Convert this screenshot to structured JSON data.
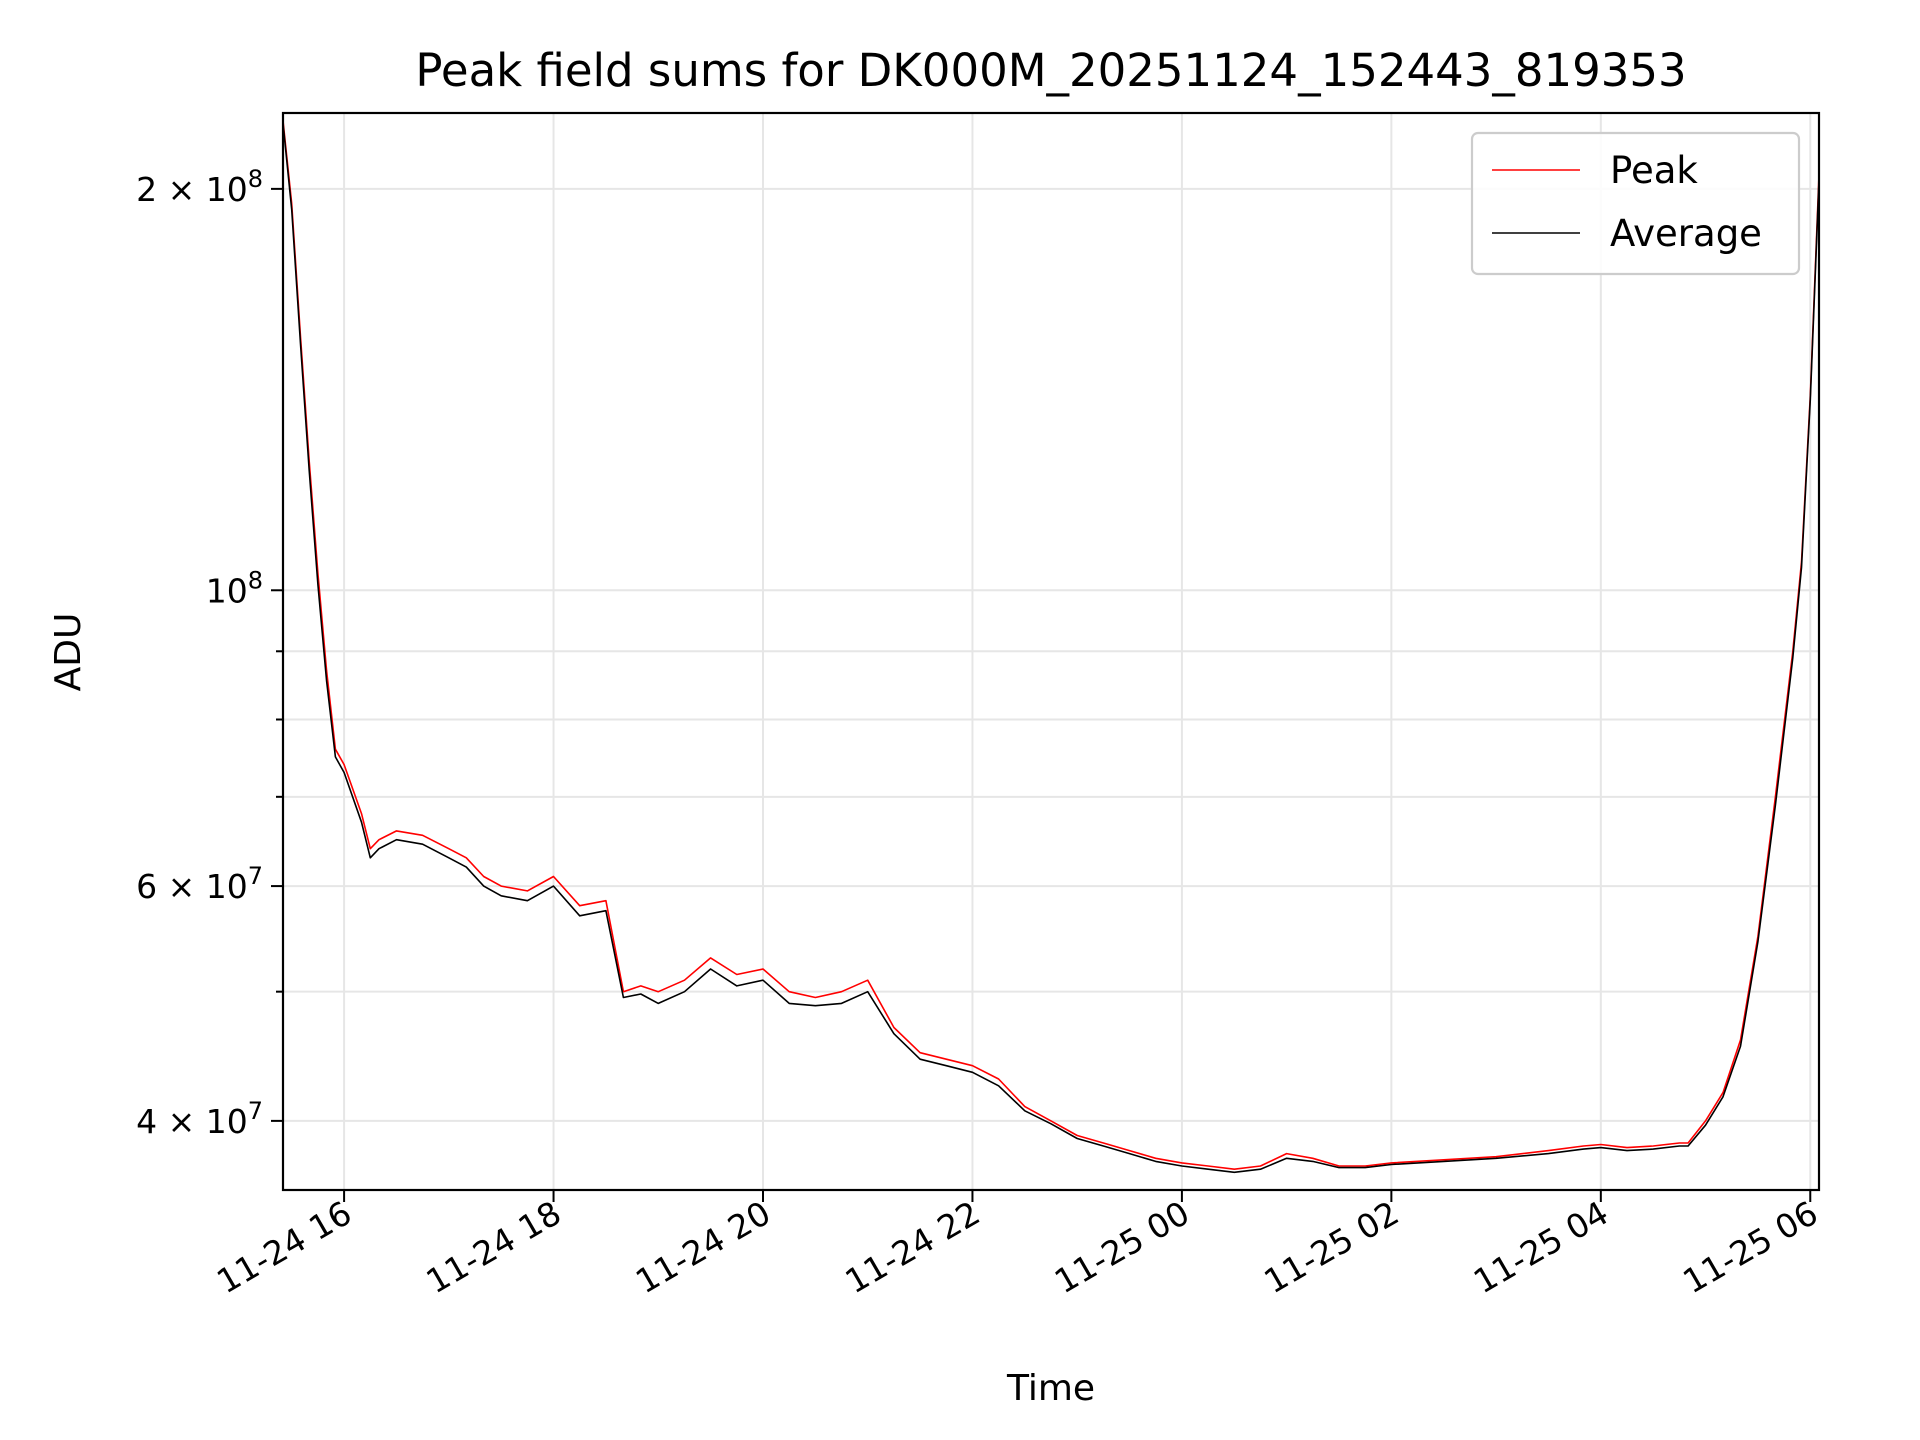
{
  "chart_data": {
    "type": "line",
    "title": "Peak field sums for DK000M_20251124_152443_819353",
    "xlabel": "Time",
    "ylabel": "ADU",
    "yscale": "log",
    "grid": true,
    "legend_position": "top-right",
    "xlim": [
      "2025-11-24 15:25",
      "2025-11-25 06:05"
    ],
    "ylim": [
      35500000,
      228000000
    ],
    "x_ticks": [
      {
        "value": "2025-11-24 16:00",
        "label": "11-24 16"
      },
      {
        "value": "2025-11-24 18:00",
        "label": "11-24 18"
      },
      {
        "value": "2025-11-24 20:00",
        "label": "11-24 20"
      },
      {
        "value": "2025-11-24 22:00",
        "label": "11-24 22"
      },
      {
        "value": "2025-11-25 00:00",
        "label": "11-25 00"
      },
      {
        "value": "2025-11-25 02:00",
        "label": "11-25 02"
      },
      {
        "value": "2025-11-25 04:00",
        "label": "11-25 04"
      },
      {
        "value": "2025-11-25 06:00",
        "label": "11-25 06"
      }
    ],
    "y_major_ticks": [
      {
        "value": 40000000,
        "mantissa": "4",
        "exponent": "7"
      },
      {
        "value": 60000000,
        "mantissa": "6",
        "exponent": "7"
      },
      {
        "value": 100000000,
        "mantissa": "",
        "exponent": "8"
      },
      {
        "value": 200000000,
        "mantissa": "2",
        "exponent": "8"
      }
    ],
    "y_minor_ticks": [
      50000000,
      70000000,
      80000000,
      90000000
    ],
    "series": [
      {
        "name": "Peak",
        "color": "#ff0000",
        "x": [
          "2025-11-24 15:25",
          "2025-11-24 15:30",
          "2025-11-24 15:35",
          "2025-11-24 15:40",
          "2025-11-24 15:45",
          "2025-11-24 15:50",
          "2025-11-24 15:55",
          "2025-11-24 16:00",
          "2025-11-24 16:10",
          "2025-11-24 16:15",
          "2025-11-24 16:20",
          "2025-11-24 16:30",
          "2025-11-24 16:45",
          "2025-11-24 17:00",
          "2025-11-24 17:10",
          "2025-11-24 17:20",
          "2025-11-24 17:30",
          "2025-11-24 17:45",
          "2025-11-24 18:00",
          "2025-11-24 18:15",
          "2025-11-24 18:30",
          "2025-11-24 18:40",
          "2025-11-24 18:50",
          "2025-11-24 19:00",
          "2025-11-24 19:15",
          "2025-11-24 19:30",
          "2025-11-24 19:45",
          "2025-11-24 20:00",
          "2025-11-24 20:15",
          "2025-11-24 20:30",
          "2025-11-24 20:45",
          "2025-11-24 21:00",
          "2025-11-24 21:15",
          "2025-11-24 21:30",
          "2025-11-24 21:45",
          "2025-11-24 22:00",
          "2025-11-24 22:15",
          "2025-11-24 22:30",
          "2025-11-24 22:45",
          "2025-11-24 23:00",
          "2025-11-24 23:15",
          "2025-11-24 23:30",
          "2025-11-24 23:45",
          "2025-11-25 00:00",
          "2025-11-25 00:15",
          "2025-11-25 00:30",
          "2025-11-25 00:45",
          "2025-11-25 01:00",
          "2025-11-25 01:15",
          "2025-11-25 01:30",
          "2025-11-25 01:45",
          "2025-11-25 02:00",
          "2025-11-25 02:30",
          "2025-11-25 03:00",
          "2025-11-25 03:30",
          "2025-11-25 03:50",
          "2025-11-25 04:00",
          "2025-11-25 04:15",
          "2025-11-25 04:30",
          "2025-11-25 04:45",
          "2025-11-25 04:50",
          "2025-11-25 05:00",
          "2025-11-25 05:10",
          "2025-11-25 05:20",
          "2025-11-25 05:30",
          "2025-11-25 05:40",
          "2025-11-25 05:50",
          "2025-11-25 05:55",
          "2025-11-25 06:00",
          "2025-11-25 06:05"
        ],
        "values": [
          225000000,
          195000000,
          155000000,
          125000000,
          103000000,
          87000000,
          76000000,
          74000000,
          68000000,
          64000000,
          65000000,
          66000000,
          65500000,
          64000000,
          63000000,
          61000000,
          60000000,
          59500000,
          61000000,
          58000000,
          58500000,
          50000000,
          50500000,
          50000000,
          51000000,
          53000000,
          51500000,
          52000000,
          50000000,
          49500000,
          50000000,
          51000000,
          47000000,
          45000000,
          44500000,
          44000000,
          43000000,
          41000000,
          40000000,
          39000000,
          38500000,
          38000000,
          37500000,
          37200000,
          37000000,
          36800000,
          37000000,
          37800000,
          37500000,
          37000000,
          37000000,
          37200000,
          37400000,
          37600000,
          38000000,
          38300000,
          38400000,
          38200000,
          38300000,
          38500000,
          38500000,
          40000000,
          42000000,
          46000000,
          55000000,
          70000000,
          90000000,
          105000000,
          140000000,
          205000000
        ]
      },
      {
        "name": "Average",
        "color": "#000000",
        "x": [
          "2025-11-24 15:25",
          "2025-11-24 15:30",
          "2025-11-24 15:35",
          "2025-11-24 15:40",
          "2025-11-24 15:45",
          "2025-11-24 15:50",
          "2025-11-24 15:55",
          "2025-11-24 16:00",
          "2025-11-24 16:10",
          "2025-11-24 16:15",
          "2025-11-24 16:20",
          "2025-11-24 16:30",
          "2025-11-24 16:45",
          "2025-11-24 17:00",
          "2025-11-24 17:10",
          "2025-11-24 17:20",
          "2025-11-24 17:30",
          "2025-11-24 17:45",
          "2025-11-24 18:00",
          "2025-11-24 18:15",
          "2025-11-24 18:30",
          "2025-11-24 18:40",
          "2025-11-24 18:50",
          "2025-11-24 19:00",
          "2025-11-24 19:15",
          "2025-11-24 19:30",
          "2025-11-24 19:45",
          "2025-11-24 20:00",
          "2025-11-24 20:15",
          "2025-11-24 20:30",
          "2025-11-24 20:45",
          "2025-11-24 21:00",
          "2025-11-24 21:15",
          "2025-11-24 21:30",
          "2025-11-24 21:45",
          "2025-11-24 22:00",
          "2025-11-24 22:15",
          "2025-11-24 22:30",
          "2025-11-24 22:45",
          "2025-11-24 23:00",
          "2025-11-24 23:15",
          "2025-11-24 23:30",
          "2025-11-24 23:45",
          "2025-11-25 00:00",
          "2025-11-25 00:15",
          "2025-11-25 00:30",
          "2025-11-25 00:45",
          "2025-11-25 01:00",
          "2025-11-25 01:15",
          "2025-11-25 01:30",
          "2025-11-25 01:45",
          "2025-11-25 02:00",
          "2025-11-25 02:30",
          "2025-11-25 03:00",
          "2025-11-25 03:30",
          "2025-11-25 03:50",
          "2025-11-25 04:00",
          "2025-11-25 04:15",
          "2025-11-25 04:30",
          "2025-11-25 04:45",
          "2025-11-25 04:50",
          "2025-11-25 05:00",
          "2025-11-25 05:10",
          "2025-11-25 05:20",
          "2025-11-25 05:30",
          "2025-11-25 05:40",
          "2025-11-25 05:50",
          "2025-11-25 05:55",
          "2025-11-25 06:00",
          "2025-11-25 06:05"
        ],
        "values": [
          224000000,
          193000000,
          153000000,
          123000000,
          101000000,
          85500000,
          75000000,
          73000000,
          67000000,
          63000000,
          64000000,
          65000000,
          64500000,
          63000000,
          62000000,
          60000000,
          59000000,
          58500000,
          60000000,
          57000000,
          57500000,
          49500000,
          49800000,
          49000000,
          50000000,
          52000000,
          50500000,
          51000000,
          49000000,
          48800000,
          49000000,
          50000000,
          46500000,
          44500000,
          44000000,
          43500000,
          42500000,
          40700000,
          39800000,
          38800000,
          38300000,
          37800000,
          37300000,
          37000000,
          36800000,
          36600000,
          36800000,
          37500000,
          37300000,
          36900000,
          36900000,
          37100000,
          37300000,
          37500000,
          37800000,
          38100000,
          38200000,
          38000000,
          38100000,
          38300000,
          38300000,
          39700000,
          41700000,
          45500000,
          54500000,
          69000000,
          89000000,
          104000000,
          139000000,
          203000000
        ]
      }
    ]
  }
}
